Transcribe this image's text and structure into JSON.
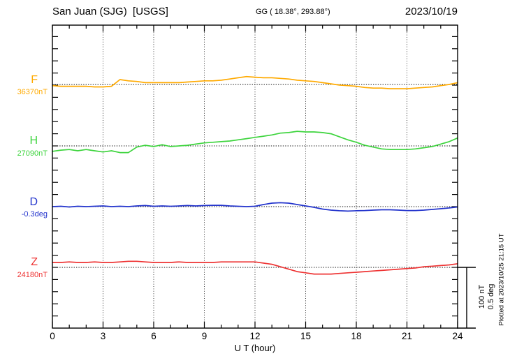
{
  "header": {
    "station_title": "San Juan (SJG)  [USGS]",
    "geographic": "GG ( 18.38°, 293.88°)",
    "date": "2023/10/19"
  },
  "xaxis": {
    "label": "U T (hour)"
  },
  "scalebar": {
    "line1": "100 nT",
    "line2": "0.5 deg"
  },
  "footer_note": "Plotted at 2023/10/25 21:15 UT",
  "channels": [
    {
      "letter": "F",
      "baseline_label": "36370nT",
      "color": "#FFAA00"
    },
    {
      "letter": "H",
      "baseline_label": "27090nT",
      "color": "#3DD43D"
    },
    {
      "letter": "D",
      "baseline_label": "-0.3deg",
      "color": "#2233CC"
    },
    {
      "letter": "Z",
      "baseline_label": "24180nT",
      "color": "#EE3333"
    }
  ],
  "chart_data": {
    "type": "line",
    "title": "San Juan (SJG) [USGS] magnetogram, 2023/10/19",
    "xlabel": "U T (hour)",
    "xlim": [
      0,
      24
    ],
    "x_major_ticks": [
      0,
      3,
      6,
      9,
      12,
      15,
      18,
      21,
      24
    ],
    "x_minor_tick_every_hours": 1,
    "gridlines": "dotted vertical every 3 h; dotted horizontal at each channel baseline",
    "scale_division": {
      "nT": 100,
      "deg": 0.5
    },
    "legend_position": "left-margin",
    "x": [
      0,
      0.5,
      1,
      1.5,
      2,
      2.5,
      3,
      3.5,
      4,
      4.5,
      5,
      5.5,
      6,
      6.5,
      7,
      7.5,
      8,
      8.5,
      9,
      9.5,
      10,
      10.5,
      11,
      11.5,
      12,
      12.5,
      13,
      13.5,
      14,
      14.5,
      15,
      15.5,
      16,
      16.5,
      17,
      17.5,
      18,
      18.5,
      19,
      19.5,
      20,
      20.5,
      21,
      21.5,
      22,
      22.5,
      23,
      23.5,
      24
    ],
    "series": [
      {
        "name": "F",
        "unit": "nT",
        "baseline": 36370,
        "color": "#FFAA00",
        "values": [
          36368,
          36367,
          36367,
          36367,
          36367,
          36366,
          36366,
          36367,
          36378,
          36376,
          36375,
          36373,
          36373,
          36373,
          36373,
          36373,
          36374,
          36375,
          36376,
          36376,
          36377,
          36379,
          36381,
          36383,
          36382,
          36381,
          36381,
          36380,
          36379,
          36377,
          36376,
          36375,
          36373,
          36371,
          36369,
          36368,
          36367,
          36365,
          36364,
          36364,
          36363,
          36363,
          36363,
          36364,
          36365,
          36366,
          36368,
          36370,
          36373
        ]
      },
      {
        "name": "H",
        "unit": "nT",
        "baseline": 27090,
        "color": "#3DD43D",
        "values": [
          27081,
          27083,
          27084,
          27082,
          27084,
          27082,
          27080,
          27082,
          27079,
          27079,
          27088,
          27091,
          27089,
          27092,
          27089,
          27090,
          27091,
          27093,
          27095,
          27096,
          27097,
          27098,
          27100,
          27102,
          27104,
          27106,
          27108,
          27111,
          27112,
          27114,
          27113,
          27113,
          27112,
          27110,
          27105,
          27100,
          27096,
          27091,
          27088,
          27085,
          27084,
          27084,
          27084,
          27085,
          27087,
          27089,
          27093,
          27097,
          27103
        ]
      },
      {
        "name": "D",
        "unit": "deg",
        "baseline": -0.3,
        "color": "#2233CC",
        "values": [
          -0.3,
          -0.297,
          -0.303,
          -0.297,
          -0.3,
          -0.297,
          -0.294,
          -0.3,
          -0.297,
          -0.3,
          -0.294,
          -0.291,
          -0.297,
          -0.294,
          -0.297,
          -0.294,
          -0.291,
          -0.294,
          -0.291,
          -0.289,
          -0.289,
          -0.294,
          -0.297,
          -0.3,
          -0.297,
          -0.283,
          -0.271,
          -0.268,
          -0.271,
          -0.283,
          -0.294,
          -0.306,
          -0.32,
          -0.329,
          -0.334,
          -0.337,
          -0.334,
          -0.332,
          -0.329,
          -0.326,
          -0.326,
          -0.329,
          -0.332,
          -0.332,
          -0.329,
          -0.323,
          -0.317,
          -0.311,
          -0.303
        ]
      },
      {
        "name": "Z",
        "unit": "nT",
        "baseline": 24180,
        "color": "#EE3333",
        "values": [
          24188,
          24188,
          24189,
          24188,
          24188,
          24189,
          24188,
          24188,
          24189,
          24190,
          24190,
          24189,
          24188,
          24188,
          24188,
          24189,
          24188,
          24188,
          24188,
          24188,
          24189,
          24189,
          24189,
          24189,
          24189,
          24187,
          24185,
          24181,
          24177,
          24173,
          24171,
          24169,
          24169,
          24169,
          24170,
          24171,
          24172,
          24173,
          24174,
          24175,
          24176,
          24177,
          24178,
          24179,
          24181,
          24182,
          24183,
          24184,
          24186
        ]
      }
    ]
  }
}
